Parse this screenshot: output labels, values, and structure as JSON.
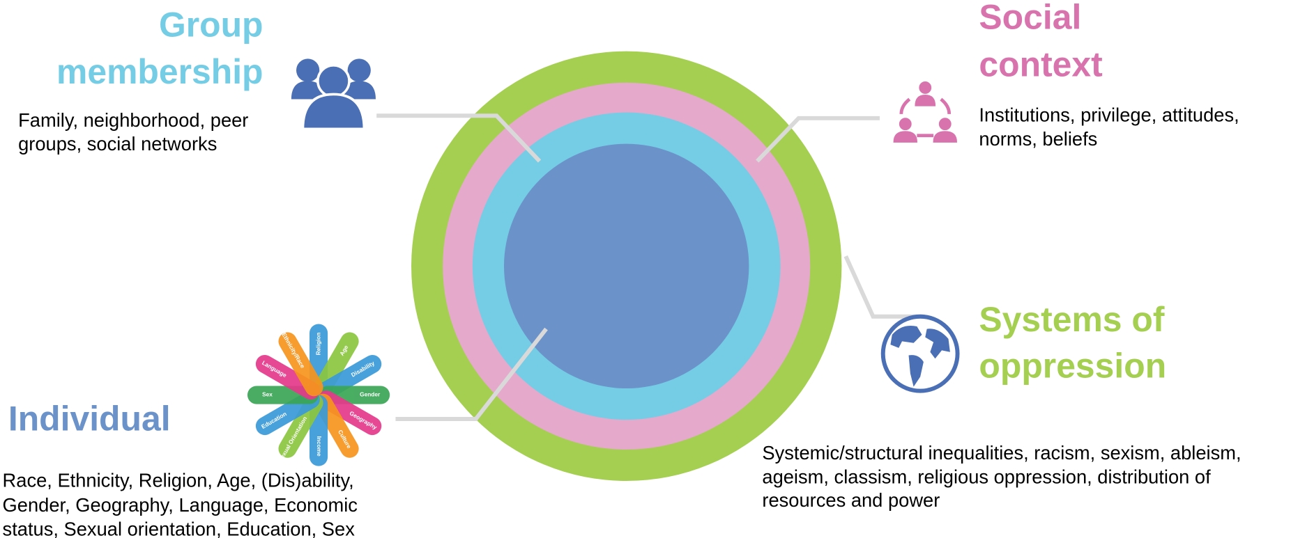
{
  "group_membership": {
    "title_lines": [
      "Group",
      "membership"
    ],
    "description_lines": [
      "Family, neighborhood, peer",
      "groups, social networks"
    ]
  },
  "social_context": {
    "title_lines": [
      "Social",
      "context"
    ],
    "description_lines": [
      "Institutions, privilege, attitudes,",
      "norms, beliefs"
    ]
  },
  "systems_of_oppression": {
    "title_lines": [
      "Systems of",
      "oppression"
    ],
    "description_lines": [
      "Systemic/structural inequalities, racism, sexism, ableism,",
      "ageism, classism, religious oppression, distribution of",
      "resources and power"
    ]
  },
  "individual": {
    "title": "Individual",
    "description_lines": [
      "Race, Ethnicity, Religion, Age, (Dis)ability,",
      "Gender, Geography, Language, Economic",
      "status, Sexual orientation, Education, Sex"
    ],
    "icon_labels": [
      "Religion",
      "Age",
      "Disability",
      "Gender",
      "Geography",
      "Culture",
      "Income",
      "Sexual Orientation",
      "Education",
      "Sex",
      "Language",
      "Ethnicity/Race"
    ]
  }
}
